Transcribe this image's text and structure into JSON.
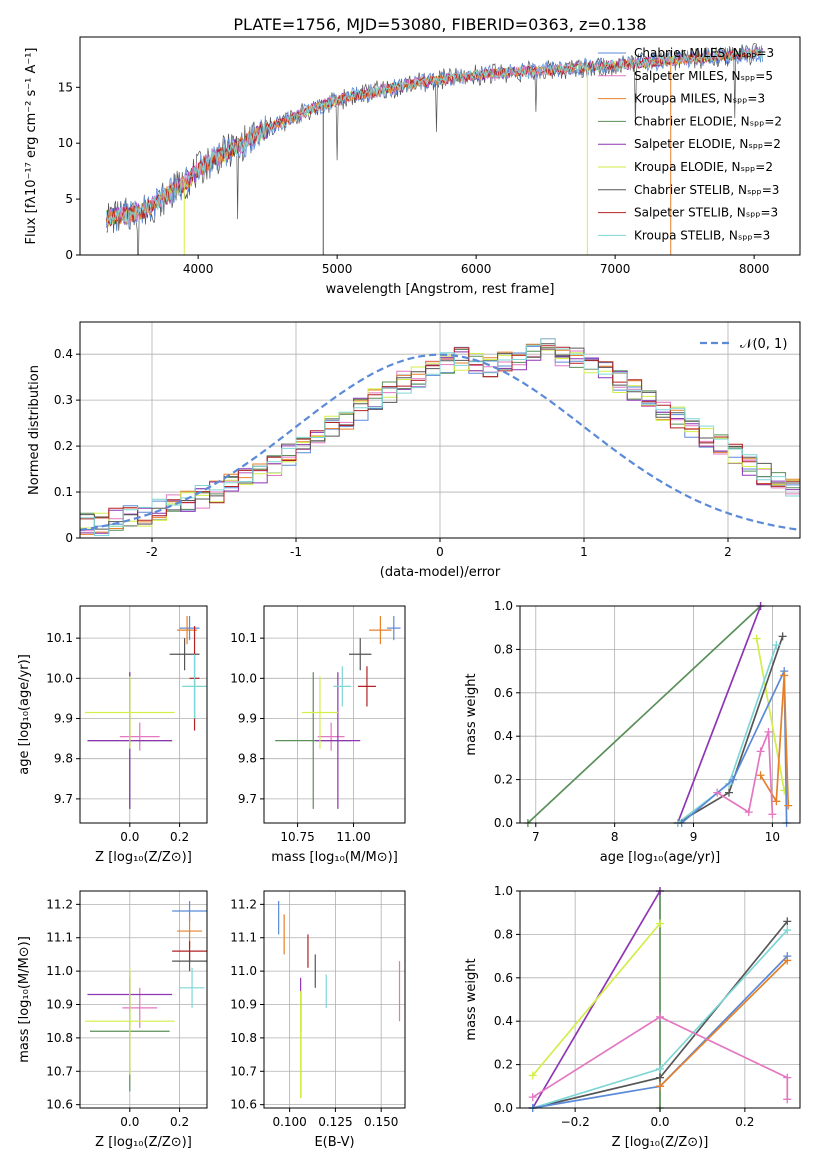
{
  "title": "PLATE=1756, MJD=53080, FIBERID=0363, z=0.138",
  "colors": {
    "chabrier_miles": "#5b8ad8",
    "salpeter_miles": "#e377c2",
    "kroupa_miles": "#e5802a",
    "chabrier_elodie": "#5a8f5a",
    "salpeter_elodie": "#8e35b5",
    "kroupa_elodie": "#d2ee48",
    "chabrier_stelib": "#555555",
    "salpeter_stelib": "#b22222",
    "kroupa_stelib": "#7fd6d6",
    "normal_curve": "#5b8ad8",
    "grid": "#b0b0b0"
  },
  "chart_data": [
    {
      "id": "spectrum",
      "type": "line",
      "xlabel": "wavelength [Angstrom, rest frame]",
      "ylabel": "Flux [fλ10⁻¹⁷ erg cm⁻² s⁻¹ A⁻¹]",
      "xlim": [
        3150,
        8330
      ],
      "ylim": [
        0,
        19.5
      ],
      "xticks": [
        4000,
        5000,
        6000,
        7000,
        8000
      ],
      "yticks": [
        0,
        5,
        10,
        15
      ],
      "grid": false,
      "legend_position": "top-right",
      "continuum": {
        "x": [
          3340,
          3500,
          3600,
          3700,
          3800,
          3900,
          4000,
          4100,
          4200,
          4300,
          4400,
          4500,
          4600,
          4700,
          4800,
          4900,
          5000,
          5100,
          5200,
          5300,
          5400,
          5500,
          5600,
          5700,
          5800,
          5900,
          6000,
          6100,
          6200,
          6300,
          6400,
          6500,
          6600,
          6700,
          6800,
          6900,
          7000,
          7100,
          7200,
          7300,
          7400,
          7500,
          7600,
          7700,
          7800,
          7900,
          8000,
          8060
        ],
        "y": [
          3.3,
          3.6,
          3.9,
          4.6,
          5.6,
          6.4,
          7.6,
          8.5,
          9.2,
          9.8,
          10.6,
          11.3,
          11.8,
          12.4,
          13.0,
          13.4,
          13.8,
          14.2,
          14.4,
          14.7,
          14.9,
          15.2,
          15.4,
          15.6,
          15.8,
          15.9,
          16.1,
          16.2,
          16.3,
          16.4,
          16.4,
          16.5,
          16.6,
          16.7,
          16.8,
          16.9,
          17.0,
          17.1,
          17.2,
          17.3,
          17.4,
          17.5,
          17.6,
          17.7,
          17.8,
          17.9,
          18.0,
          18.0
        ]
      },
      "series": [
        {
          "name": "Chabrier MILES, N<sub>SSP</sub>=3"
        },
        {
          "name": "Salpeter MILES, N<sub>SSP</sub>=5"
        },
        {
          "name": "Kroupa MILES, N<sub>SSP</sub>=3"
        },
        {
          "name": "Chabrier ELODIE, N<sub>SSP</sub>=2"
        },
        {
          "name": "Salpeter ELODIE, N<sub>SSP</sub>=2"
        },
        {
          "name": "Kroupa ELODIE, N<sub>SSP</sub>=2"
        },
        {
          "name": "Chabrier STELIB, N<sub>SSP</sub>=3"
        },
        {
          "name": "Salpeter STELIB, N<sub>SSP</sub>=3"
        },
        {
          "name": "Kroupa STELIB, N<sub>SSP</sub>=3"
        }
      ],
      "legend_texts": [
        "Chabrier MILES, Nₛₚₚ=3",
        "Salpeter MILES, Nₛₚₚ=5",
        "Kroupa MILES, Nₛₚₚ=3",
        "Chabrier ELODIE, Nₛₚₚ=2",
        "Salpeter ELODIE, Nₛₚₚ=2",
        "Kroupa ELODIE, Nₛₚₚ=2",
        "Chabrier STELIB, Nₛₚₚ=3",
        "Salpeter STELIB, Nₛₚₚ=3",
        "Kroupa STELIB, Nₛₚₚ=3"
      ]
    },
    {
      "id": "residuals",
      "type": "line",
      "xlabel": "(data-model)/error",
      "ylabel": "Normed distribution",
      "xlim": [
        -2.5,
        2.5
      ],
      "ylim": [
        0,
        0.47
      ],
      "xticks": [
        -2,
        -1,
        0,
        1,
        2
      ],
      "yticks": [
        0.0,
        0.1,
        0.2,
        0.3,
        0.4
      ],
      "grid": true,
      "legend_position": "top-right",
      "reference_curve": {
        "name": "𝒩(0, 1)",
        "mean": 0,
        "sigma": 1
      },
      "bin_width": 0.1,
      "bin_start": -2.5,
      "hist_values": [
        0.03,
        0.03,
        0.04,
        0.05,
        0.05,
        0.06,
        0.07,
        0.08,
        0.09,
        0.1,
        0.12,
        0.13,
        0.14,
        0.16,
        0.18,
        0.2,
        0.22,
        0.24,
        0.26,
        0.28,
        0.3,
        0.32,
        0.34,
        0.35,
        0.37,
        0.38,
        0.39,
        0.38,
        0.37,
        0.38,
        0.39,
        0.4,
        0.41,
        0.4,
        0.39,
        0.38,
        0.36,
        0.34,
        0.32,
        0.3,
        0.28,
        0.26,
        0.24,
        0.22,
        0.2,
        0.18,
        0.16,
        0.14,
        0.12,
        0.11
      ]
    },
    {
      "id": "age_vs_Z",
      "type": "scatter",
      "xlabel": "Z [log₁₀(Z/Z⊙)]",
      "ylabel": "age  [log₁₀(age/yr)]",
      "xlim": [
        -0.2,
        0.31
      ],
      "ylim": [
        9.64,
        10.18
      ],
      "xticks": [
        "0.0",
        "0.2"
      ],
      "yticks": [
        "9.7",
        "9.8",
        "9.9",
        "10.0",
        "10.1"
      ],
      "grid": true,
      "points": [
        {
          "s": "chabrier_miles",
          "x": 0.24,
          "y": 10.125,
          "xe": 0.04,
          "ye": 0.03
        },
        {
          "s": "salpeter_miles",
          "x": 0.04,
          "y": 9.855,
          "xe": 0.08,
          "ye": 0.035
        },
        {
          "s": "kroupa_miles",
          "x": 0.23,
          "y": 10.12,
          "xe": 0.04,
          "ye": 0.035
        },
        {
          "s": "chabrier_elodie",
          "x": 0.0,
          "y": 9.845,
          "xe": 0.17,
          "ye": 0.17
        },
        {
          "s": "salpeter_elodie",
          "x": 0.0,
          "y": 9.845,
          "xe": 0.17,
          "ye": 0.17
        },
        {
          "s": "kroupa_elodie",
          "x": 0.0,
          "y": 9.915,
          "xe": 0.18,
          "ye": 0.09
        },
        {
          "s": "chabrier_stelib",
          "x": 0.22,
          "y": 10.06,
          "xe": 0.06,
          "ye": 0.04
        },
        {
          "s": "salpeter_stelib",
          "x": 0.26,
          "y": 10.0,
          "xe": 0.02,
          "ye": 0.13
        },
        {
          "s": "kroupa_stelib",
          "x": 0.26,
          "y": 9.98,
          "xe": 0.05,
          "ye": 0.08
        }
      ]
    },
    {
      "id": "age_vs_mass",
      "type": "scatter",
      "xlabel": "mass [log₁₀(M/M⊙)]",
      "ylabel": "",
      "xlim": [
        10.6,
        11.23
      ],
      "ylim": [
        9.64,
        10.18
      ],
      "xticks": [
        "10.75",
        "11.00"
      ],
      "yticks": [
        "9.7",
        "9.8",
        "9.9",
        "10.0",
        "10.1"
      ],
      "grid": true,
      "points": [
        {
          "s": "chabrier_miles",
          "x": 11.18,
          "y": 10.125,
          "xe": 0.03,
          "ye": 0.03
        },
        {
          "s": "salpeter_miles",
          "x": 10.9,
          "y": 9.855,
          "xe": 0.06,
          "ye": 0.035
        },
        {
          "s": "kroupa_miles",
          "x": 11.12,
          "y": 10.12,
          "xe": 0.05,
          "ye": 0.035
        },
        {
          "s": "chabrier_elodie",
          "x": 10.82,
          "y": 9.845,
          "xe": 0.17,
          "ye": 0.17
        },
        {
          "s": "salpeter_elodie",
          "x": 10.93,
          "y": 9.845,
          "xe": 0.1,
          "ye": 0.17
        },
        {
          "s": "kroupa_elodie",
          "x": 10.85,
          "y": 9.915,
          "xe": 0.08,
          "ye": 0.09
        },
        {
          "s": "chabrier_stelib",
          "x": 11.03,
          "y": 10.06,
          "xe": 0.05,
          "ye": 0.04
        },
        {
          "s": "salpeter_stelib",
          "x": 11.06,
          "y": 9.98,
          "xe": 0.04,
          "ye": 0.05
        },
        {
          "s": "kroupa_stelib",
          "x": 10.95,
          "y": 9.98,
          "xe": 0.04,
          "ye": 0.05
        }
      ]
    },
    {
      "id": "mass_vs_Z",
      "type": "scatter",
      "xlabel": "Z [log₁₀(Z/Z⊙)]",
      "ylabel": "mass [log₁₀(M/M⊙)]",
      "xlim": [
        -0.2,
        0.31
      ],
      "ylim": [
        10.59,
        11.24
      ],
      "xticks": [
        "0.0",
        "0.2"
      ],
      "yticks": [
        "10.6",
        "10.7",
        "10.8",
        "10.9",
        "11.0",
        "11.1",
        "11.2"
      ],
      "grid": true,
      "points": [
        {
          "s": "chabrier_miles",
          "x": 0.24,
          "y": 11.18,
          "xe": 0.07,
          "ye": 0.03
        },
        {
          "s": "salpeter_miles",
          "x": 0.04,
          "y": 10.89,
          "xe": 0.07,
          "ye": 0.06
        },
        {
          "s": "kroupa_miles",
          "x": 0.24,
          "y": 11.12,
          "xe": 0.05,
          "ye": 0.05
        },
        {
          "s": "chabrier_elodie",
          "x": 0.0,
          "y": 10.82,
          "xe": 0.16,
          "ye": 0.18
        },
        {
          "s": "salpeter_elodie",
          "x": 0.0,
          "y": 10.93,
          "xe": 0.17,
          "ye": 0.05
        },
        {
          "s": "kroupa_elodie",
          "x": 0.0,
          "y": 10.85,
          "xe": 0.18,
          "ye": 0.16
        },
        {
          "s": "chabrier_stelib",
          "x": 0.24,
          "y": 11.03,
          "xe": 0.07,
          "ye": 0.03
        },
        {
          "s": "salpeter_stelib",
          "x": 0.24,
          "y": 11.06,
          "xe": 0.07,
          "ye": 0.03
        },
        {
          "s": "kroupa_stelib",
          "x": 0.25,
          "y": 10.95,
          "xe": 0.05,
          "ye": 0.06
        }
      ]
    },
    {
      "id": "mass_vs_EBV",
      "type": "scatter",
      "xlabel": "E(B-V)",
      "ylabel": "",
      "xlim": [
        0.086,
        0.163
      ],
      "ylim": [
        10.59,
        11.24
      ],
      "xticks": [
        "0.100",
        "0.125",
        "0.150"
      ],
      "yticks": [
        "10.6",
        "10.7",
        "10.8",
        "10.9",
        "11.0",
        "11.1",
        "11.2"
      ],
      "grid": true,
      "points": [
        {
          "s": "chabrier_miles",
          "x": 0.094,
          "y": 11.16,
          "xe": 0.0,
          "ye": 0.05
        },
        {
          "s": "salpeter_miles",
          "x": 0.16,
          "y": 10.94,
          "xe": 0.0,
          "ye": 0.09
        },
        {
          "s": "kroupa_miles",
          "x": 0.097,
          "y": 11.11,
          "xe": 0.0,
          "ye": 0.06
        },
        {
          "s": "chabrier_elodie",
          "x": 0.106,
          "y": 10.78,
          "xe": 0.0,
          "ye": 0.16
        },
        {
          "s": "salpeter_elodie",
          "x": 0.106,
          "y": 10.9,
          "xe": 0.0,
          "ye": 0.08
        },
        {
          "s": "kroupa_elodie",
          "x": 0.106,
          "y": 10.78,
          "xe": 0.0,
          "ye": 0.16
        },
        {
          "s": "chabrier_stelib",
          "x": 0.114,
          "y": 11.0,
          "xe": 0.0,
          "ye": 0.05
        },
        {
          "s": "salpeter_stelib",
          "x": 0.11,
          "y": 11.06,
          "xe": 0.0,
          "ye": 0.05
        },
        {
          "s": "kroupa_stelib",
          "x": 0.12,
          "y": 10.94,
          "xe": 0.0,
          "ye": 0.05
        }
      ]
    },
    {
      "id": "weight_vs_age",
      "type": "line",
      "xlabel": "age  [log₁₀(age/yr)]",
      "ylabel": "mass weight",
      "xlim": [
        6.8,
        10.35
      ],
      "ylim": [
        0,
        1.0
      ],
      "xticks": [
        "7",
        "8",
        "9",
        "10"
      ],
      "yticks": [
        "0.0",
        "0.2",
        "0.4",
        "0.6",
        "0.8",
        "1.0"
      ],
      "grid": true,
      "lines": [
        {
          "s": "chabrier_elodie",
          "x": [
            6.9,
            9.85
          ],
          "y": [
            0.0,
            1.0
          ]
        },
        {
          "s": "salpeter_elodie",
          "x": [
            8.8,
            9.85
          ],
          "y": [
            0.0,
            1.0
          ]
        },
        {
          "s": "kroupa_elodie",
          "x": [
            9.8,
            10.15
          ],
          "y": [
            0.85,
            0.15
          ]
        },
        {
          "s": "chabrier_stelib",
          "x": [
            8.8,
            9.45,
            10.13
          ],
          "y": [
            0.0,
            0.14,
            0.86
          ]
        },
        {
          "s": "kroupa_stelib",
          "x": [
            8.8,
            9.45,
            10.05
          ],
          "y": [
            0.0,
            0.18,
            0.82
          ]
        },
        {
          "s": "chabrier_miles",
          "x": [
            8.85,
            9.5,
            10.15,
            10.18
          ],
          "y": [
            0.0,
            0.2,
            0.7,
            0.0
          ]
        },
        {
          "s": "kroupa_miles",
          "x": [
            9.85,
            10.05,
            10.15,
            10.2
          ],
          "y": [
            0.22,
            0.1,
            0.68,
            0.08
          ]
        },
        {
          "s": "salpeter_miles",
          "x": [
            9.3,
            9.7,
            9.85,
            9.95,
            10.0
          ],
          "y": [
            0.14,
            0.05,
            0.33,
            0.42,
            0.04
          ]
        }
      ]
    },
    {
      "id": "weight_vs_Z",
      "type": "line",
      "xlabel": "Z [log₁₀(Z/Z⊙)]",
      "ylabel": "mass weight",
      "xlim": [
        -0.33,
        0.33
      ],
      "ylim": [
        0,
        1.0
      ],
      "xticks": [
        "−0.2",
        "0.0",
        "0.2"
      ],
      "yticks": [
        "0.0",
        "0.2",
        "0.4",
        "0.6",
        "0.8",
        "1.0"
      ],
      "grid": true,
      "lines": [
        {
          "s": "chabrier_elodie",
          "x": [
            0.0,
            0.0
          ],
          "y": [
            0.0,
            1.0
          ]
        },
        {
          "s": "salpeter_elodie",
          "x": [
            -0.3,
            0.0
          ],
          "y": [
            0.0,
            1.0
          ]
        },
        {
          "s": "kroupa_elodie",
          "x": [
            -0.3,
            0.0
          ],
          "y": [
            0.15,
            0.85
          ]
        },
        {
          "s": "chabrier_stelib",
          "x": [
            -0.3,
            0.0,
            0.3
          ],
          "y": [
            0.0,
            0.14,
            0.86
          ]
        },
        {
          "s": "kroupa_stelib",
          "x": [
            -0.3,
            0.0,
            0.3
          ],
          "y": [
            0.0,
            0.18,
            0.82
          ]
        },
        {
          "s": "chabrier_miles",
          "x": [
            -0.3,
            0.0,
            0.3
          ],
          "y": [
            0.0,
            0.1,
            0.7
          ]
        },
        {
          "s": "kroupa_miles",
          "x": [
            0.0,
            0.3
          ],
          "y": [
            0.1,
            0.68
          ]
        },
        {
          "s": "salpeter_miles",
          "x": [
            -0.3,
            0.0,
            0.3,
            0.3
          ],
          "y": [
            0.05,
            0.42,
            0.14,
            0.04
          ]
        }
      ]
    }
  ]
}
